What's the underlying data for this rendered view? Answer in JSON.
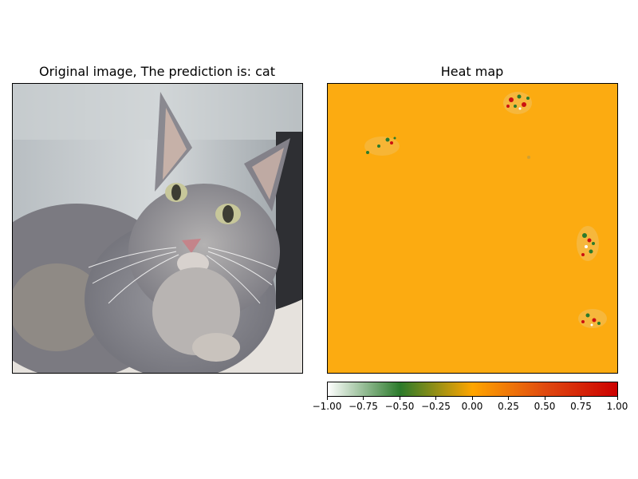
{
  "left_panel": {
    "title": "Original image, The prediction is: cat",
    "image_subject": "gray long-haired cat lying on a towel against a metal wall"
  },
  "right_panel": {
    "title": "Heat map",
    "base_color": "#fcab11",
    "hotspots": [
      "top-center",
      "upper-left",
      "right-middle",
      "lower-right"
    ]
  },
  "colorbar": {
    "min": -1.0,
    "max": 1.0,
    "tick_labels": [
      "−1.00",
      "−0.75",
      "−0.50",
      "−0.25",
      "0.00",
      "0.25",
      "0.50",
      "0.75",
      "1.00"
    ],
    "colors": [
      "#ffffff",
      "#2b7a2b",
      "#ffa500",
      "#cc0000"
    ]
  }
}
